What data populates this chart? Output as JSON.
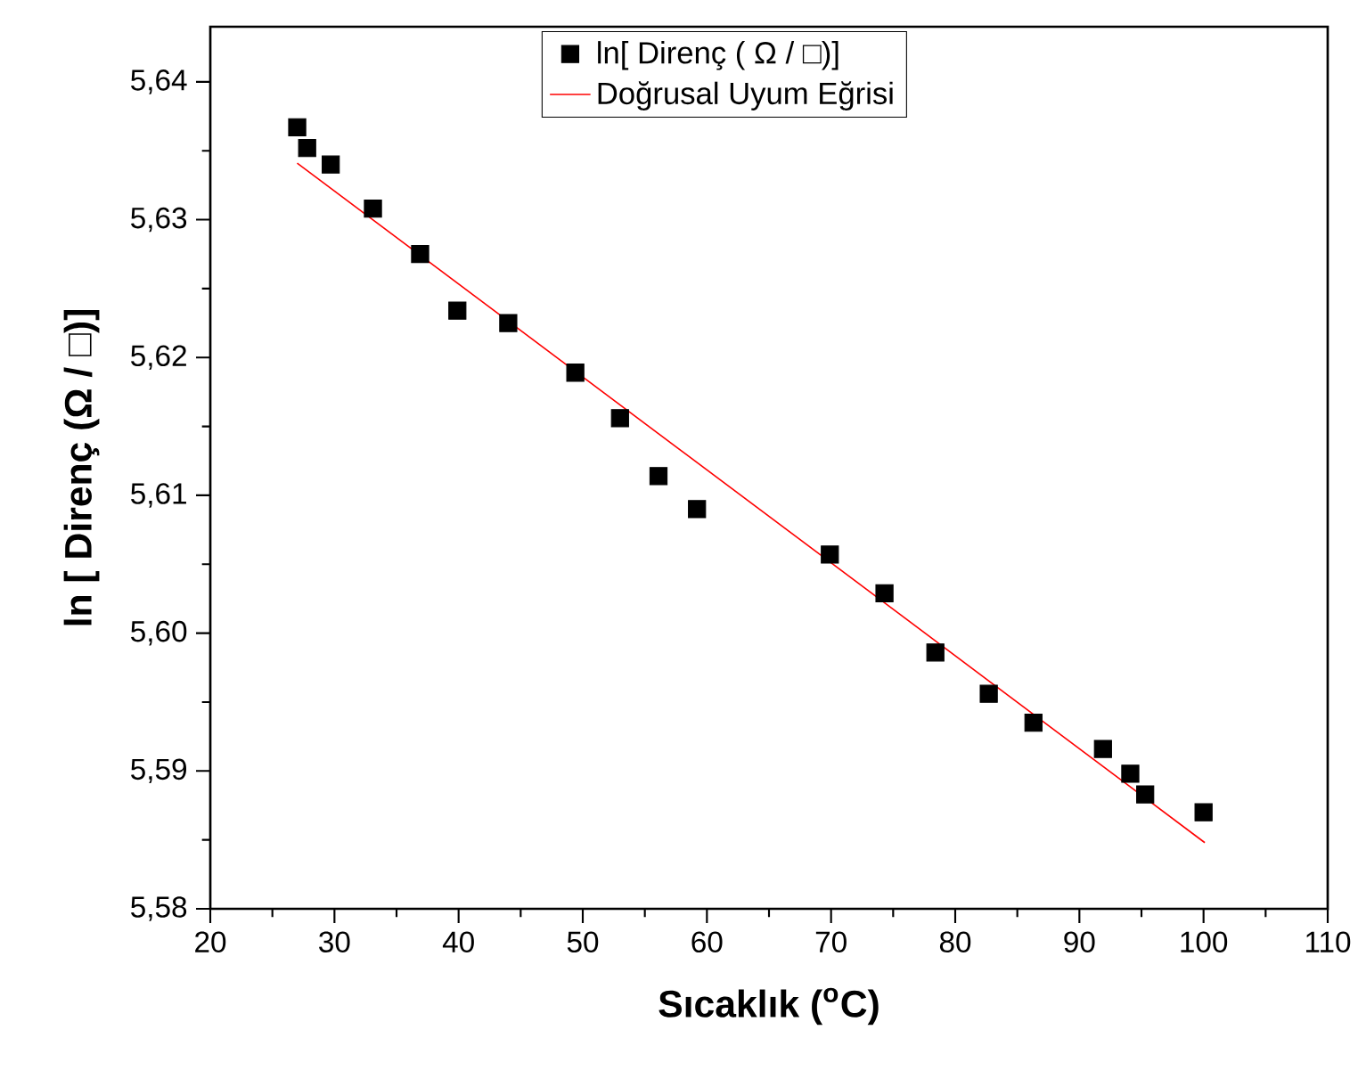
{
  "chart_data": {
    "type": "scatter",
    "xlabel": "Sıcaklık ($^{o}$C)",
    "ylabel": "ln [ Direnç (Ω / □)]",
    "xlim": [
      20,
      110
    ],
    "xticks": [
      20,
      30,
      40,
      50,
      60,
      70,
      80,
      90,
      100,
      110
    ],
    "ylim": [
      5.58,
      5.644
    ],
    "yticks": [
      {
        "value": 5.58,
        "label": "5,58"
      },
      {
        "value": 5.59,
        "label": "5,59"
      },
      {
        "value": 5.6,
        "label": "5,60"
      },
      {
        "value": 5.61,
        "label": "5,61"
      },
      {
        "value": 5.62,
        "label": "5,62"
      },
      {
        "value": 5.63,
        "label": "5,63"
      },
      {
        "value": 5.64,
        "label": "5,64"
      }
    ],
    "grid": false,
    "legend": "top",
    "series": [
      {
        "name": "ln[ Direnç ( Ω / □)]",
        "marker": "square",
        "color": "#000000",
        "x": [
          27.0,
          27.8,
          29.7,
          33.1,
          36.9,
          39.9,
          44.0,
          49.4,
          53.0,
          56.1,
          59.2,
          69.9,
          74.3,
          78.4,
          82.7,
          86.3,
          91.9,
          94.1,
          95.3,
          100.0
        ],
        "values": [
          5.6367,
          5.6352,
          5.634,
          5.6308,
          5.6275,
          5.6234,
          5.6225,
          5.6189,
          5.6156,
          5.6114,
          5.609,
          5.6057,
          5.6029,
          5.5986,
          5.5956,
          5.5935,
          5.5916,
          5.5898,
          5.5883,
          5.587
        ]
      },
      {
        "name": "Doğrusal Uyum Eğrisi",
        "type": "line",
        "line_style": "solid",
        "color": "#ff0000",
        "x": [
          27.0,
          100.1
        ],
        "values": [
          5.6341,
          5.5848
        ]
      }
    ]
  }
}
